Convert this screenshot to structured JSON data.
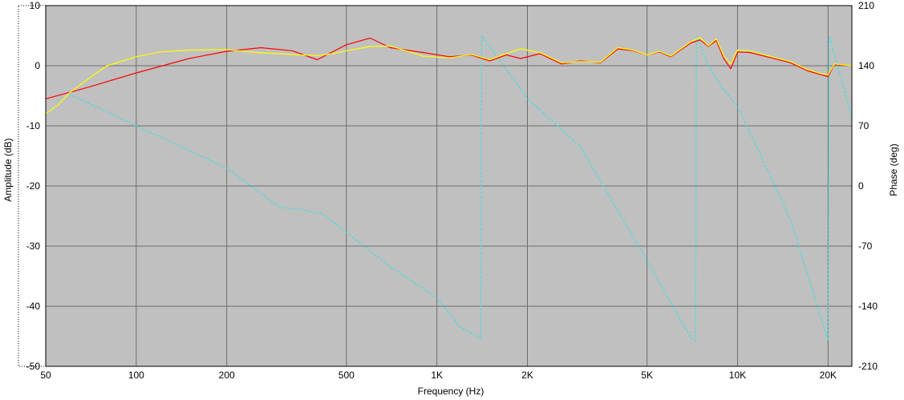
{
  "chart_data": {
    "type": "line",
    "xlabel": "Frequency (Hz)",
    "ylabel": "Amplitude (dB)",
    "y2label": "Phase (deg)",
    "xscale": "log",
    "xlim": [
      50,
      24000
    ],
    "ylim": [
      -50,
      10
    ],
    "y2lim": [
      -210,
      210
    ],
    "grid": true,
    "colors": {
      "background": "#c0c0c0",
      "grid": "#6e6e6e",
      "amplitude_red": "#ff0000",
      "amplitude_yellow": "#ffff00",
      "phase": "#40e0e0"
    },
    "x_ticks": [
      {
        "value": 50,
        "label": "50"
      },
      {
        "value": 100,
        "label": "100"
      },
      {
        "value": 200,
        "label": "200"
      },
      {
        "value": 500,
        "label": "500"
      },
      {
        "value": 1000,
        "label": "1K"
      },
      {
        "value": 2000,
        "label": "2K"
      },
      {
        "value": 5000,
        "label": "5K"
      },
      {
        "value": 10000,
        "label": "10K"
      },
      {
        "value": 20000,
        "label": "20K"
      }
    ],
    "y_ticks": [
      {
        "value": 10,
        "label": "10"
      },
      {
        "value": 0,
        "label": "0"
      },
      {
        "value": -10,
        "label": "-10"
      },
      {
        "value": -20,
        "label": "-20"
      },
      {
        "value": -30,
        "label": "-30"
      },
      {
        "value": -40,
        "label": "-40"
      },
      {
        "value": -50,
        "label": "-50"
      }
    ],
    "y2_ticks": [
      {
        "value": 210,
        "label": "210"
      },
      {
        "value": 140,
        "label": "140"
      },
      {
        "value": 70,
        "label": "70"
      },
      {
        "value": 0,
        "label": "0"
      },
      {
        "value": -70,
        "label": "-70"
      },
      {
        "value": -140,
        "label": "-140"
      },
      {
        "value": -210,
        "label": "-210"
      }
    ],
    "series": [
      {
        "axis": "left",
        "color": "#ff0000",
        "x": [
          50,
          70,
          100,
          150,
          200,
          260,
          330,
          400,
          500,
          600,
          700,
          900,
          1100,
          1300,
          1500,
          1700,
          1900,
          2200,
          2600,
          3000,
          3500,
          4000,
          4500,
          5000,
          5500,
          6000,
          7000,
          7500,
          8000,
          8500,
          9000,
          9500,
          10000,
          11000,
          13000,
          15000,
          17000,
          19000,
          20000,
          21000,
          24000
        ],
        "y": [
          -5.5,
          -3.5,
          -1.2,
          1.2,
          2.4,
          3.0,
          2.5,
          1.0,
          3.5,
          4.6,
          3.0,
          2.2,
          1.5,
          1.8,
          0.8,
          1.8,
          1.2,
          2.0,
          0.3,
          0.8,
          0.5,
          2.8,
          2.5,
          1.8,
          2.3,
          1.5,
          3.8,
          4.3,
          3.2,
          4.2,
          1.2,
          -0.5,
          2.3,
          2.2,
          1.3,
          0.5,
          -0.8,
          -1.5,
          -1.8,
          0.2,
          0.0
        ]
      },
      {
        "axis": "left",
        "color": "#ffff00",
        "x": [
          50,
          55,
          60,
          70,
          80,
          100,
          120,
          150,
          200,
          250,
          300,
          350,
          400,
          450,
          500,
          600,
          700,
          900,
          1100,
          1300,
          1500,
          1700,
          1900,
          2200,
          2600,
          3000,
          3500,
          4000,
          4500,
          5000,
          5500,
          6000,
          7000,
          7500,
          8000,
          8500,
          9000,
          9500,
          10000,
          11000,
          13000,
          15000,
          17000,
          19000,
          20000,
          21000,
          24000
        ],
        "y": [
          -8.0,
          -6.5,
          -4.5,
          -2.0,
          0.0,
          1.5,
          2.3,
          2.6,
          2.7,
          2.2,
          2.0,
          1.8,
          1.7,
          2.0,
          2.5,
          3.2,
          3.3,
          1.6,
          1.3,
          1.9,
          1.0,
          2.0,
          2.8,
          2.2,
          0.5,
          0.7,
          0.6,
          3.0,
          2.6,
          1.8,
          2.4,
          1.6,
          4.0,
          4.7,
          3.3,
          4.5,
          1.6,
          0.3,
          2.6,
          2.5,
          1.5,
          0.7,
          -0.6,
          -1.3,
          -1.5,
          0.3,
          0.0
        ]
      },
      {
        "axis": "right",
        "color": "#40e0e0",
        "dashed": true,
        "x": [
          60,
          100,
          200,
          300,
          350,
          420,
          500,
          700,
          1000,
          1200,
          1400,
          1410,
          2000,
          3000,
          5000,
          7000,
          7250,
          7300,
          8000,
          9000,
          10000,
          15000,
          20000,
          20200,
          24000
        ],
        "y": [
          107,
          70,
          21,
          -25,
          -27,
          -33,
          -54,
          -94,
          -130,
          -165,
          -177,
          175,
          102,
          46,
          -87,
          -177,
          -180,
          175,
          140,
          112,
          93,
          -39,
          -180,
          175,
          79
        ]
      }
    ]
  }
}
